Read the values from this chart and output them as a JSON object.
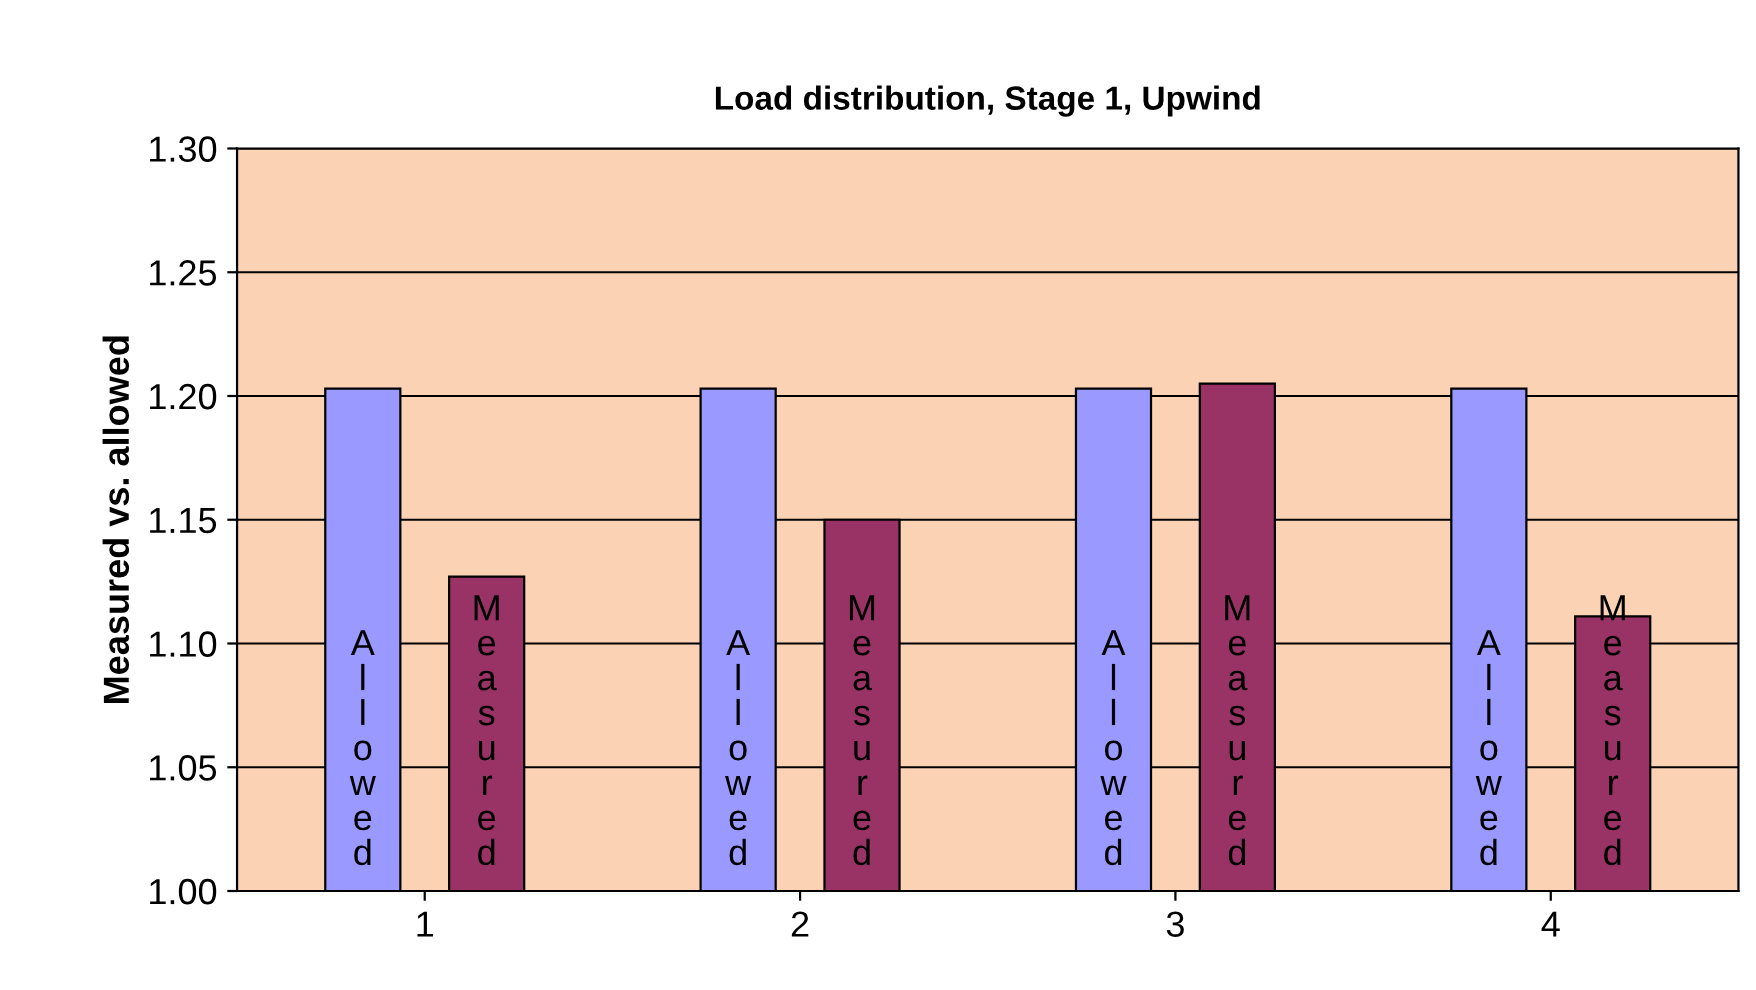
{
  "chart_data": {
    "type": "bar",
    "title": "Load distribution, Stage 1, Upwind",
    "ylabel": "Measured vs. allowed",
    "categories": [
      "1",
      "2",
      "3",
      "4"
    ],
    "series": [
      {
        "name": "Allowed",
        "color": "#9999ff",
        "values": [
          1.203,
          1.203,
          1.203,
          1.203
        ]
      },
      {
        "name": "Measured",
        "color": "#993366",
        "values": [
          1.127,
          1.15,
          1.205,
          1.111
        ]
      }
    ],
    "ylim": [
      1.0,
      1.3
    ],
    "yticks": [
      {
        "value": 1.0,
        "label": "1.00"
      },
      {
        "value": 1.05,
        "label": "1.05"
      },
      {
        "value": 1.1,
        "label": "1.10"
      },
      {
        "value": 1.15,
        "label": "1.15"
      },
      {
        "value": 1.2,
        "label": "1.20"
      },
      {
        "value": 1.25,
        "label": "1.25"
      },
      {
        "value": 1.3,
        "label": "1.30"
      }
    ],
    "grid": "y",
    "legend": false
  }
}
